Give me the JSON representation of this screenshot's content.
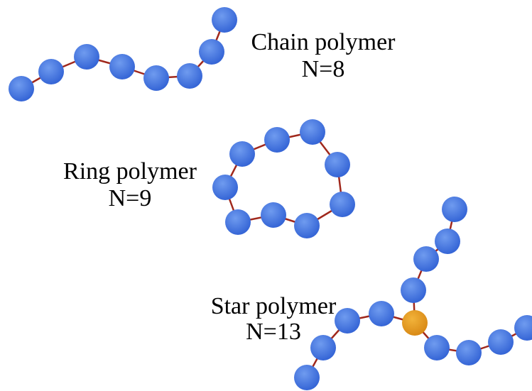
{
  "chain": {
    "label": "Chain polymer",
    "n": "N=8"
  },
  "ring": {
    "label": "Ring polymer",
    "n": "N=9"
  },
  "star": {
    "label": "Star polymer",
    "n": "N=13"
  }
}
